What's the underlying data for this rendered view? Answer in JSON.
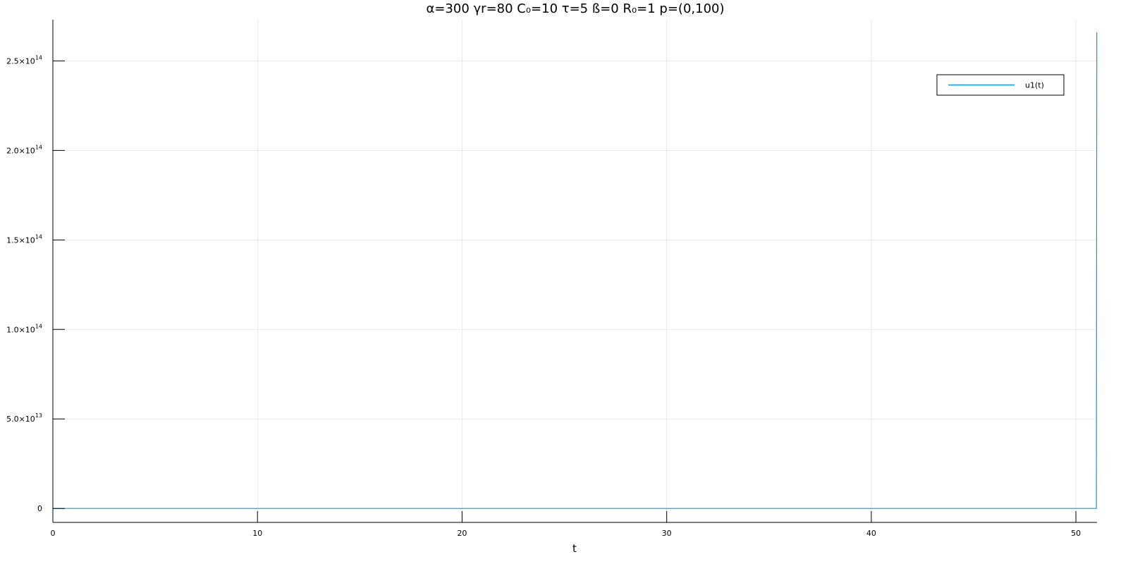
{
  "chart_data": {
    "type": "line",
    "title": "α=300 γr=80 C₀=10 τ=5 ß=0 R₀=1 p=(0,100)",
    "xlabel": "t",
    "ylabel": "",
    "xlim": [
      0,
      51.03
    ],
    "ylim": [
      -7800000000000.0,
      273000000000000.0
    ],
    "x_ticks": [
      0,
      10,
      20,
      30,
      40,
      50
    ],
    "x_tick_labels": [
      "0",
      "10",
      "20",
      "30",
      "40",
      "50"
    ],
    "y_ticks": [
      0,
      50000000000000.0,
      100000000000000.0,
      150000000000000.0,
      200000000000000.0,
      250000000000000.0
    ],
    "y_tick_labels": [
      {
        "mantissa": "0",
        "exponent": ""
      },
      {
        "mantissa": "5.0×10",
        "exponent": "13"
      },
      {
        "mantissa": "1.0×10",
        "exponent": "14"
      },
      {
        "mantissa": "1.5×10",
        "exponent": "14"
      },
      {
        "mantissa": "2.0×10",
        "exponent": "14"
      },
      {
        "mantissa": "2.5×10",
        "exponent": "14"
      }
    ],
    "grid": true,
    "legend_position": "top-right",
    "series": [
      {
        "name": "u1(t)",
        "color": "#009af9",
        "x": [
          0,
          10,
          20,
          30,
          40,
          50,
          51.0,
          51.02
        ],
        "y": [
          0,
          0,
          0,
          0,
          0,
          0,
          0,
          266000000000000.0
        ]
      }
    ]
  }
}
